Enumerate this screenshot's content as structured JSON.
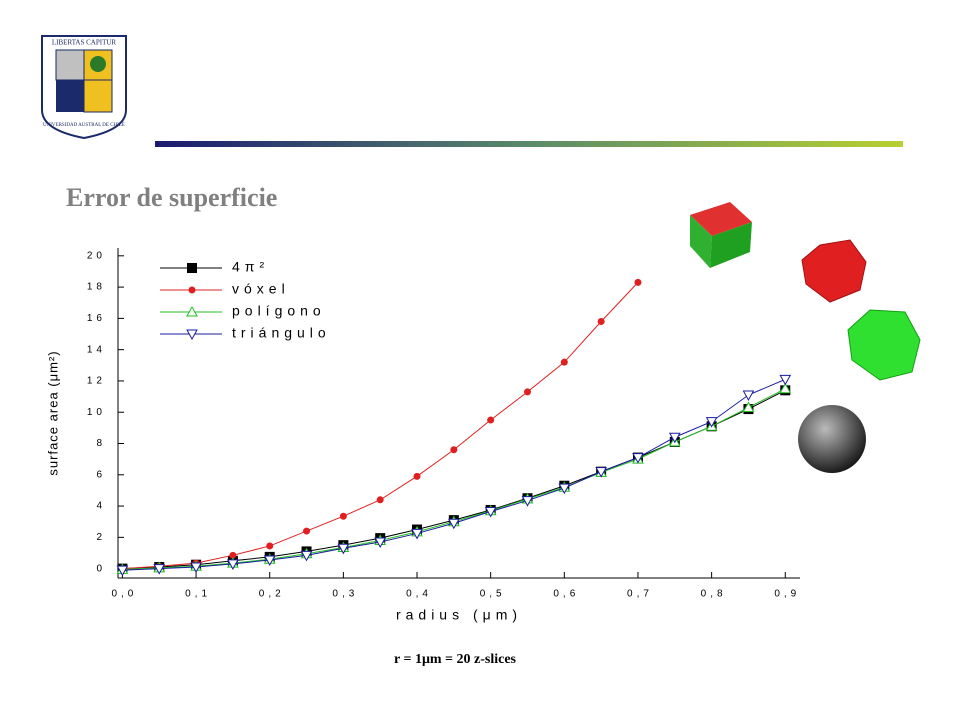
{
  "slide": {
    "title": "Error de superficie",
    "caption": "r = 1μm = 20 z-slices"
  },
  "logo": {
    "top": "LIBERTAS CAPITUR",
    "bottom": "UNIVERSIDAD AUSTRAL DE CHILE"
  },
  "chart_data": {
    "type": "line",
    "xlabel": "radius (μm)",
    "ylabel": "surface area (μm²)",
    "x": [
      0,
      0.05,
      0.1,
      0.15,
      0.2,
      0.25,
      0.3,
      0.35,
      0.4,
      0.45,
      0.5,
      0.55,
      0.6,
      0.65,
      0.7,
      0.75,
      0.8,
      0.85,
      0.9
    ],
    "series": [
      {
        "name": "4π²",
        "color": "#000000",
        "marker": "square",
        "values": [
          0,
          0.1,
          0.25,
          0.5,
          0.75,
          1.1,
          1.5,
          1.95,
          2.5,
          3.1,
          3.75,
          4.5,
          5.3,
          6.2,
          7.1,
          8.1,
          9.1,
          10.2,
          11.4
        ]
      },
      {
        "name": "vóxel",
        "color": "#e02020",
        "marker": "circle",
        "values": [
          0,
          0.15,
          0.35,
          0.85,
          1.45,
          2.4,
          3.35,
          4.4,
          5.9,
          7.6,
          9.5,
          11.3,
          13.2,
          15.8,
          18.3,
          null,
          null,
          null,
          null
        ]
      },
      {
        "name": "polígono",
        "color": "#20c020",
        "marker": "triangle",
        "values": [
          -0.05,
          0.05,
          0.15,
          0.35,
          0.6,
          0.95,
          1.35,
          1.8,
          2.35,
          3.0,
          3.7,
          4.45,
          5.2,
          6.15,
          7.0,
          8.1,
          9.1,
          10.3,
          11.5
        ]
      },
      {
        "name": "triángulo",
        "color": "#1a1aa0",
        "marker": "triangle-down",
        "values": [
          -0.1,
          0,
          0.1,
          0.3,
          0.55,
          0.85,
          1.3,
          1.7,
          2.25,
          2.9,
          3.65,
          4.35,
          5.15,
          6.2,
          7.1,
          8.4,
          9.4,
          11.1,
          12.1
        ]
      }
    ],
    "xlim": [
      -0.006,
      0.92
    ],
    "ylim": [
      -0.6,
      20.5
    ],
    "xticks": [
      {
        "value": 0,
        "label": "0,0"
      },
      {
        "value": 0.1,
        "label": "0,1"
      },
      {
        "value": 0.2,
        "label": "0,2"
      },
      {
        "value": 0.3,
        "label": "0,3"
      },
      {
        "value": 0.4,
        "label": "0,4"
      },
      {
        "value": 0.5,
        "label": "0,5"
      },
      {
        "value": 0.6,
        "label": "0,6"
      },
      {
        "value": 0.7,
        "label": "0,7"
      },
      {
        "value": 0.8,
        "label": "0,8"
      },
      {
        "value": 0.9,
        "label": "0,9"
      }
    ],
    "yticks": [
      0,
      2,
      4,
      6,
      8,
      10,
      12,
      14,
      16,
      18,
      20
    ],
    "legend": "upper-left"
  }
}
